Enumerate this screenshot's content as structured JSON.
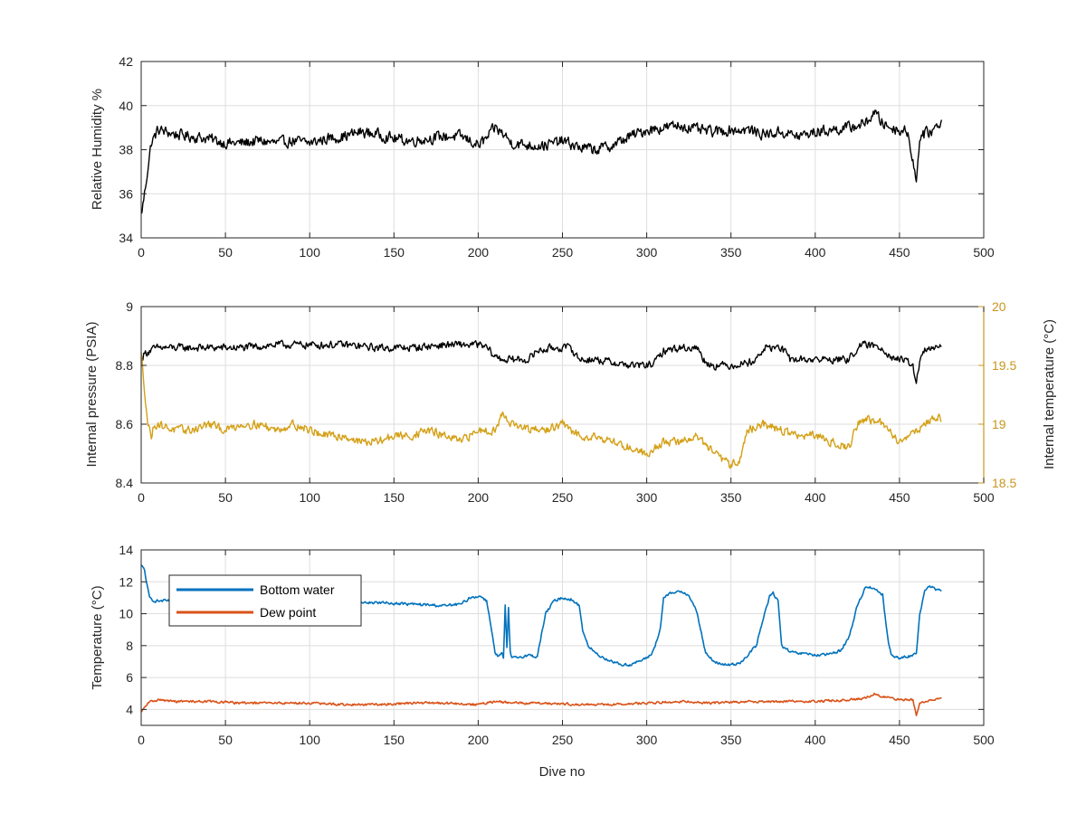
{
  "chart_data": [
    {
      "type": "line",
      "xlim": [
        0,
        500
      ],
      "ylim": [
        34,
        42
      ],
      "xticks": [
        "0",
        "50",
        "100",
        "150",
        "200",
        "250",
        "300",
        "350",
        "400",
        "450",
        "500"
      ],
      "yticks": [
        "34",
        "36",
        "38",
        "40",
        "42"
      ],
      "xlabel": "",
      "ylabel": "Relative Humidity %",
      "grid": true,
      "colors": {
        "rh": "#000000"
      },
      "series": [
        {
          "key": "rh",
          "x": [
            0,
            2,
            4,
            6,
            8,
            10,
            15,
            20,
            30,
            40,
            50,
            60,
            70,
            80,
            90,
            100,
            110,
            120,
            130,
            140,
            150,
            160,
            170,
            180,
            190,
            200,
            205,
            210,
            215,
            220,
            230,
            240,
            250,
            260,
            270,
            280,
            285,
            290,
            300,
            310,
            320,
            330,
            340,
            350,
            360,
            370,
            380,
            390,
            400,
            410,
            420,
            430,
            435,
            440,
            445,
            450,
            455,
            458,
            460,
            462,
            465,
            470,
            475
          ],
          "y": [
            35.0,
            36.0,
            37.2,
            38.3,
            38.6,
            38.9,
            38.8,
            38.7,
            38.6,
            38.5,
            38.3,
            38.3,
            38.4,
            38.3,
            38.4,
            38.3,
            38.5,
            38.6,
            38.8,
            38.7,
            38.5,
            38.4,
            38.5,
            38.6,
            38.6,
            38.2,
            38.5,
            39.0,
            38.7,
            38.3,
            38.2,
            38.2,
            38.4,
            38.1,
            38.0,
            38.2,
            38.4,
            38.6,
            38.9,
            39.0,
            39.1,
            38.9,
            38.8,
            38.9,
            38.9,
            38.7,
            38.8,
            38.6,
            38.8,
            38.9,
            39.0,
            39.2,
            39.7,
            39.2,
            39.0,
            38.9,
            38.8,
            37.5,
            36.5,
            38.6,
            38.7,
            38.9,
            39.3
          ],
          "noise": 0.35
        }
      ]
    },
    {
      "type": "line",
      "xlim": [
        0,
        500
      ],
      "ylim": [
        8.4,
        9
      ],
      "ylim_right": [
        18.5,
        20
      ],
      "xticks": [
        "0",
        "50",
        "100",
        "150",
        "200",
        "250",
        "300",
        "350",
        "400",
        "450",
        "500"
      ],
      "yticks": [
        "8.4",
        "8.6",
        "8.8",
        "9"
      ],
      "yticks_right": [
        "18.5",
        "19",
        "19.5",
        "20"
      ],
      "xlabel": "",
      "ylabel": "Internal pressure (PSIA)",
      "ylabel_right": "Internal temperature (°C)",
      "grid": true,
      "colors": {
        "pressure": "#000000",
        "temperature": "#d4a017",
        "right_axis": "#c8961e"
      },
      "series": [
        {
          "key": "pressure",
          "axis": "left",
          "x": [
            0,
            2,
            5,
            10,
            20,
            40,
            60,
            80,
            100,
            120,
            140,
            160,
            180,
            200,
            205,
            210,
            215,
            220,
            230,
            235,
            245,
            255,
            260,
            270,
            280,
            290,
            300,
            305,
            310,
            320,
            330,
            335,
            340,
            350,
            360,
            365,
            370,
            380,
            385,
            390,
            400,
            410,
            420,
            425,
            430,
            440,
            445,
            450,
            455,
            458,
            460,
            462,
            465,
            470,
            475
          ],
          "y": [
            8.82,
            8.84,
            8.85,
            8.86,
            8.86,
            8.86,
            8.86,
            8.87,
            8.87,
            8.87,
            8.86,
            8.86,
            8.87,
            8.87,
            8.86,
            8.83,
            8.82,
            8.82,
            8.82,
            8.85,
            8.86,
            8.86,
            8.82,
            8.82,
            8.81,
            8.8,
            8.8,
            8.81,
            8.85,
            8.86,
            8.86,
            8.81,
            8.8,
            8.8,
            8.81,
            8.82,
            8.86,
            8.86,
            8.82,
            8.82,
            8.82,
            8.82,
            8.82,
            8.86,
            8.87,
            8.86,
            8.83,
            8.82,
            8.81,
            8.8,
            8.74,
            8.81,
            8.85,
            8.86,
            8.86
          ],
          "noise": 0.018
        },
        {
          "key": "temperature",
          "axis": "right",
          "x": [
            0,
            2,
            4,
            6,
            8,
            10,
            20,
            30,
            40,
            50,
            60,
            70,
            80,
            90,
            100,
            110,
            120,
            130,
            140,
            150,
            160,
            170,
            180,
            190,
            200,
            210,
            215,
            220,
            230,
            240,
            250,
            260,
            270,
            280,
            290,
            300,
            310,
            320,
            330,
            340,
            350,
            355,
            360,
            370,
            380,
            390,
            400,
            410,
            420,
            425,
            430,
            440,
            450,
            455,
            460,
            470,
            475
          ],
          "y": [
            19.6,
            19.3,
            19.0,
            18.9,
            19.0,
            19.0,
            18.95,
            18.95,
            19.0,
            18.95,
            19.0,
            19.0,
            18.95,
            19.0,
            18.95,
            18.9,
            18.9,
            18.85,
            18.85,
            18.9,
            18.9,
            18.95,
            18.9,
            18.85,
            18.95,
            18.95,
            19.1,
            19.0,
            18.95,
            18.95,
            19.0,
            18.9,
            18.9,
            18.85,
            18.8,
            18.75,
            18.85,
            18.85,
            18.9,
            18.75,
            18.65,
            18.7,
            18.95,
            19.0,
            18.95,
            18.9,
            18.9,
            18.85,
            18.8,
            19.0,
            19.05,
            19.0,
            18.85,
            18.9,
            18.95,
            19.05,
            19.05
          ],
          "noise": 0.05
        }
      ]
    },
    {
      "type": "line",
      "xlim": [
        0,
        500
      ],
      "ylim": [
        3,
        14
      ],
      "xticks": [
        "0",
        "50",
        "100",
        "150",
        "200",
        "250",
        "300",
        "350",
        "400",
        "450",
        "500"
      ],
      "yticks": [
        "4",
        "6",
        "8",
        "10",
        "12",
        "14"
      ],
      "xlabel": "Dive no",
      "ylabel": "Temperature (°C)",
      "grid": true,
      "legend_position": "top-left",
      "colors": {
        "bottom": "#0072bd",
        "dew": "#d95319"
      },
      "series": [
        {
          "key": "bottom",
          "name": "Bottom water",
          "x": [
            0,
            2,
            3,
            5,
            8,
            10,
            20,
            40,
            60,
            80,
            100,
            120,
            140,
            160,
            180,
            190,
            195,
            200,
            203,
            205,
            208,
            210,
            212,
            214,
            215,
            216,
            217,
            218,
            219,
            220,
            225,
            230,
            235,
            240,
            245,
            250,
            255,
            260,
            262,
            265,
            270,
            275,
            280,
            285,
            290,
            295,
            300,
            303,
            305,
            308,
            310,
            315,
            320,
            325,
            330,
            335,
            340,
            345,
            350,
            355,
            360,
            365,
            370,
            373,
            375,
            378,
            380,
            385,
            390,
            395,
            400,
            405,
            410,
            415,
            420,
            425,
            430,
            435,
            440,
            443,
            445,
            450,
            455,
            460,
            462,
            465,
            468,
            470,
            475
          ],
          "y": [
            13.0,
            12.8,
            12.0,
            11.0,
            10.8,
            10.8,
            10.8,
            10.8,
            10.8,
            10.8,
            10.7,
            10.7,
            10.7,
            10.6,
            10.5,
            10.6,
            11.0,
            11.1,
            11.0,
            10.8,
            9.0,
            7.5,
            7.3,
            7.5,
            7.2,
            10.5,
            7.8,
            10.4,
            7.6,
            7.2,
            7.3,
            7.4,
            7.3,
            10.0,
            10.8,
            11.0,
            10.9,
            10.5,
            9.0,
            8.0,
            7.5,
            7.2,
            7.0,
            6.8,
            6.8,
            7.0,
            7.2,
            7.5,
            8.0,
            9.0,
            11.0,
            11.3,
            11.4,
            11.2,
            10.0,
            7.5,
            7.0,
            6.8,
            6.8,
            6.9,
            7.4,
            8.0,
            10.0,
            11.1,
            11.3,
            10.8,
            8.0,
            7.6,
            7.5,
            7.5,
            7.4,
            7.4,
            7.5,
            7.7,
            8.5,
            10.5,
            11.7,
            11.6,
            11.2,
            8.5,
            7.4,
            7.2,
            7.3,
            7.5,
            10.0,
            11.4,
            11.7,
            11.6,
            11.4
          ],
          "noise": 0.12
        },
        {
          "key": "dew",
          "name": "Dew point",
          "x": [
            0,
            2,
            4,
            6,
            10,
            20,
            30,
            40,
            60,
            80,
            100,
            120,
            140,
            160,
            180,
            200,
            210,
            220,
            240,
            260,
            280,
            300,
            320,
            340,
            360,
            380,
            400,
            420,
            430,
            435,
            440,
            450,
            458,
            460,
            462,
            465,
            470,
            475
          ],
          "y": [
            3.8,
            4.1,
            4.4,
            4.5,
            4.6,
            4.5,
            4.5,
            4.5,
            4.4,
            4.4,
            4.4,
            4.3,
            4.3,
            4.4,
            4.4,
            4.3,
            4.5,
            4.4,
            4.4,
            4.3,
            4.3,
            4.4,
            4.5,
            4.4,
            4.5,
            4.5,
            4.5,
            4.6,
            4.7,
            5.0,
            4.8,
            4.6,
            4.6,
            3.6,
            4.4,
            4.5,
            4.6,
            4.8
          ],
          "noise": 0.1
        }
      ]
    }
  ]
}
